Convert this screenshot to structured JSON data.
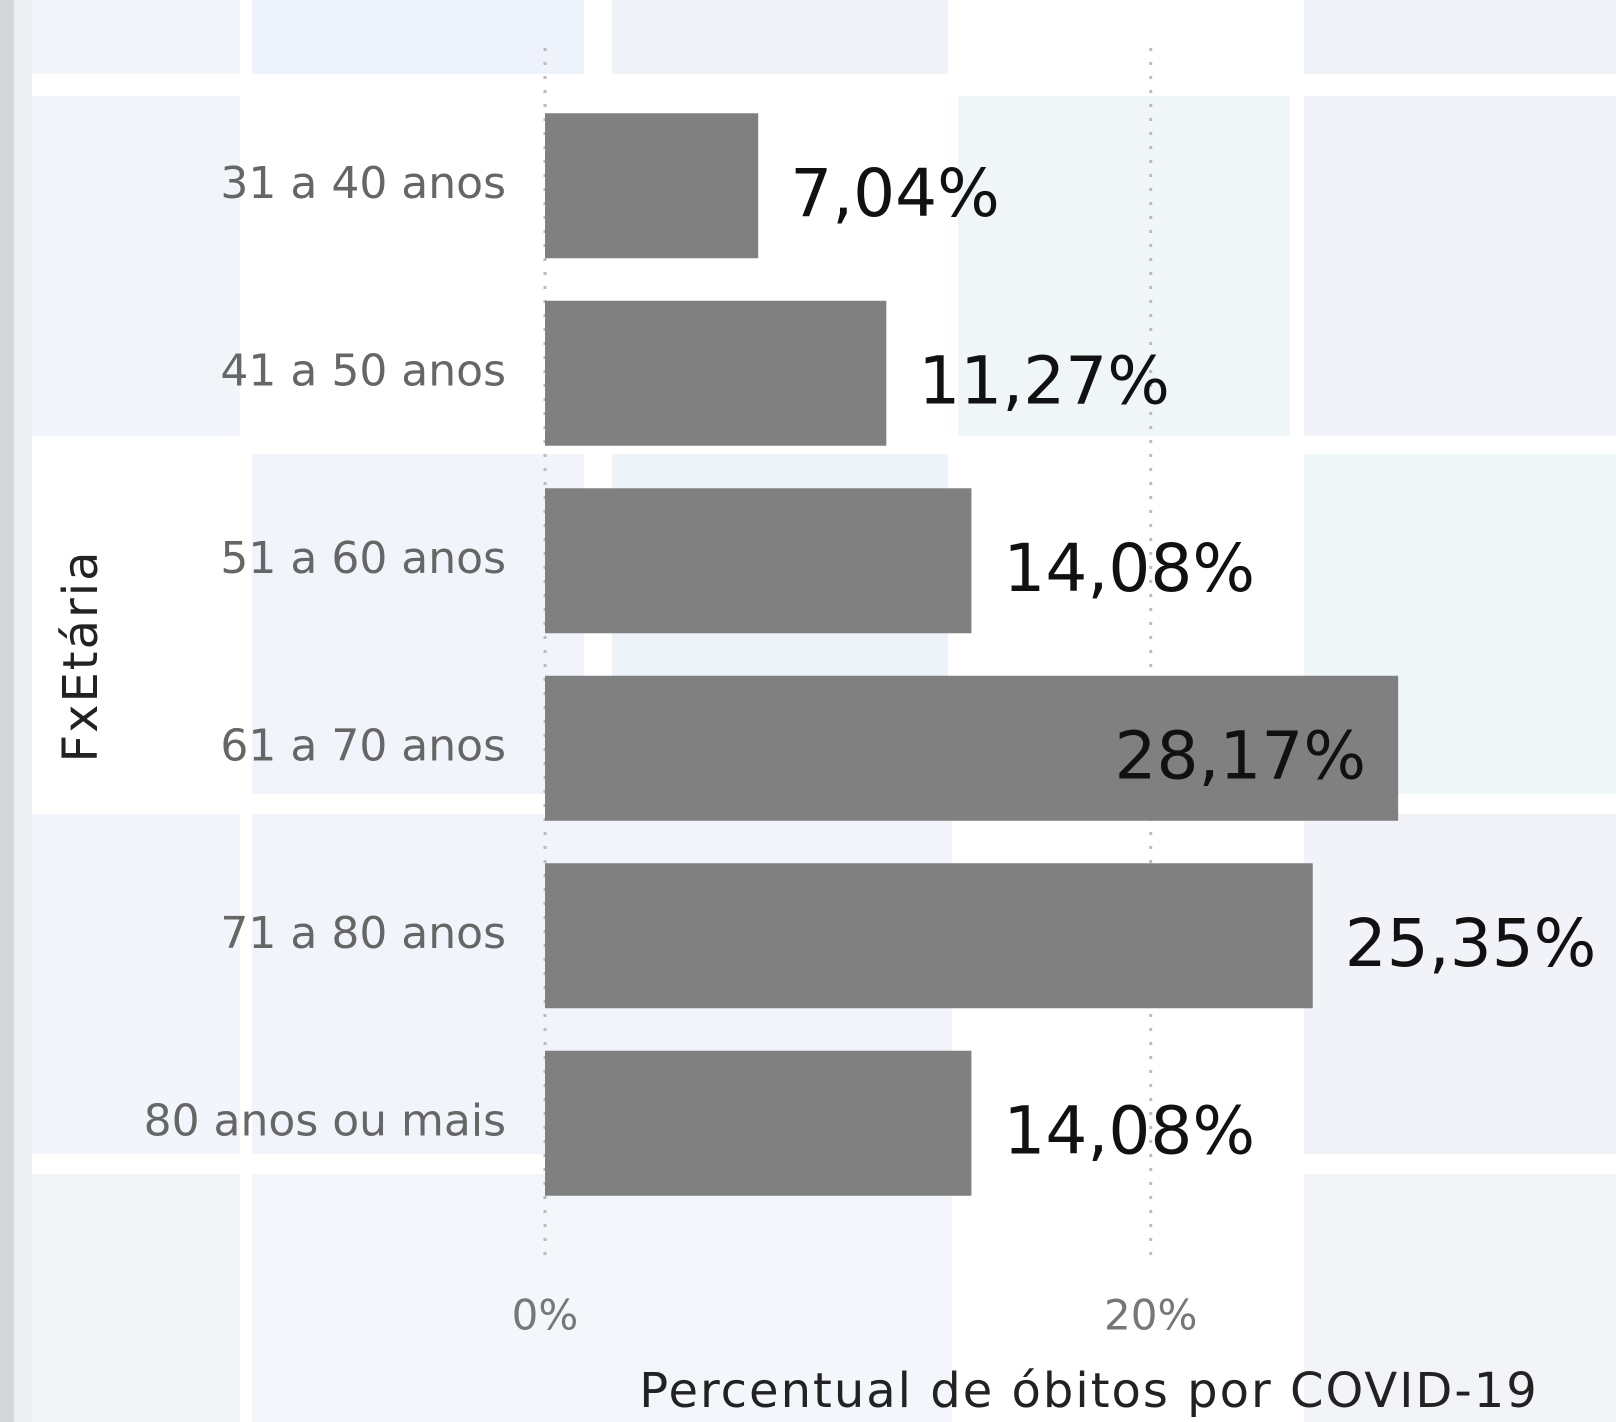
{
  "chart_data": {
    "type": "bar",
    "orientation": "horizontal",
    "categories": [
      "31 a 40 anos",
      "41 a 50 anos",
      "51 a 60 anos",
      "61 a 70 anos",
      "71 a 80 anos",
      "80 anos ou mais"
    ],
    "values": [
      7.04,
      11.27,
      14.08,
      28.17,
      25.35,
      14.08
    ],
    "value_labels": [
      "7,04%",
      "11,27%",
      "14,08%",
      "28,17%",
      "25,35%",
      "14,08%"
    ],
    "color": "#808080",
    "xlim": [
      0,
      35
    ],
    "xticks": [
      {
        "value": 0,
        "label": "0%"
      },
      {
        "value": 20,
        "label": "20%"
      }
    ],
    "grid": true,
    "x_label": "Percentual de óbitos por COVID-19",
    "y_label": "FxEtária"
  }
}
